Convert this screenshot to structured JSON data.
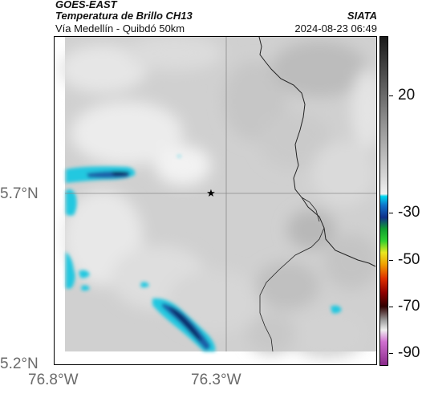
{
  "header": {
    "satellite": "GOES-EAST",
    "product": "Temperatura de Brillo CH13",
    "route": "Vía Medellín - Quibdó 50km",
    "organization": "SIATA",
    "timestamp": "2024-08-23 06:49"
  },
  "map": {
    "latitude_labels": [
      "5.7°N",
      "5.2°N"
    ],
    "longitude_labels": [
      "76.8°W",
      "76.3°W"
    ],
    "marker": "star-marker",
    "colors": {
      "cloud_cold_cyan": "#22c8e0",
      "cloud_cold_blue": "#1a5fa8",
      "cloud_coldest_navy": "#0b2a66",
      "background_gray": "#d2d2d2",
      "border_line": "#222222"
    }
  },
  "colorbar": {
    "tick_labels": [
      "20",
      "-30",
      "-50",
      "-70",
      "-90"
    ],
    "tick_values": [
      20,
      -30,
      -50,
      -70,
      -90
    ],
    "range": [
      -95,
      45
    ],
    "stops": [
      {
        "value": 45,
        "color": "#1a1a1a"
      },
      {
        "value": 30,
        "color": "#4a4a4a"
      },
      {
        "value": 10,
        "color": "#8c8c8c"
      },
      {
        "value": -15,
        "color": "#d8d8d8"
      },
      {
        "value": -22,
        "color": "#f2f2f2"
      },
      {
        "value": -23,
        "color": "#00d8f0"
      },
      {
        "value": -27,
        "color": "#1070c8"
      },
      {
        "value": -32,
        "color": "#10308a"
      },
      {
        "value": -37,
        "color": "#10a030"
      },
      {
        "value": -42,
        "color": "#30d030"
      },
      {
        "value": -47,
        "color": "#e8e820"
      },
      {
        "value": -52,
        "color": "#f0a000"
      },
      {
        "value": -58,
        "color": "#e03000"
      },
      {
        "value": -64,
        "color": "#900000"
      },
      {
        "value": -70,
        "color": "#300000"
      },
      {
        "value": -76,
        "color": "#a0a0a0"
      },
      {
        "value": -80,
        "color": "#f0f0f0"
      },
      {
        "value": -85,
        "color": "#d070d0"
      },
      {
        "value": -95,
        "color": "#8a2a8a"
      }
    ]
  }
}
